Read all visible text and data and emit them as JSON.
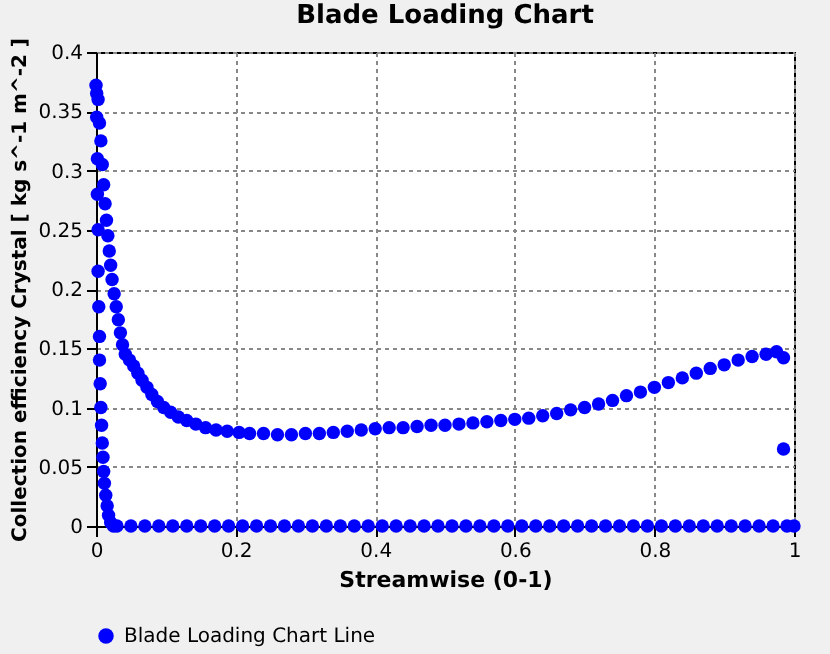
{
  "chart_data": {
    "type": "scatter",
    "title": "Blade Loading Chart",
    "xlabel": "Streamwise (0-1)",
    "ylabel": "Collection efficiency Crystal [ kg s^-1 m^-2 ]",
    "xlim": [
      0,
      1
    ],
    "xticks": [
      0,
      0.2,
      0.4,
      0.6,
      0.8,
      1
    ],
    "ylim": [
      0,
      0.4
    ],
    "yticks": [
      0,
      0.05,
      0.1,
      0.15,
      0.2,
      0.25,
      0.3,
      0.35,
      0.4
    ],
    "grid": true,
    "legend": "bottom",
    "marker": "circle",
    "series": [
      {
        "name": "Blade Loading Chart Line",
        "color": "#0000ff",
        "x": [
          0.0,
          0.003,
          0.005,
          0.007,
          0.009,
          0.011,
          0.013,
          0.015,
          0.017,
          0.019,
          0.021,
          0.023,
          0.026,
          0.029,
          0.032,
          0.035,
          0.038,
          0.042,
          0.048,
          0.054,
          0.06,
          0.066,
          0.073,
          0.08,
          0.088,
          0.097,
          0.107,
          0.118,
          0.13,
          0.143,
          0.157,
          0.172,
          0.188,
          0.205,
          0.22,
          0.24,
          0.26,
          0.28,
          0.3,
          0.32,
          0.34,
          0.36,
          0.38,
          0.4,
          0.42,
          0.44,
          0.46,
          0.48,
          0.5,
          0.52,
          0.54,
          0.56,
          0.58,
          0.6,
          0.62,
          0.64,
          0.66,
          0.68,
          0.7,
          0.72,
          0.74,
          0.76,
          0.78,
          0.8,
          0.82,
          0.84,
          0.86,
          0.88,
          0.9,
          0.92,
          0.94,
          0.96,
          0.975,
          0.985,
          0.985,
          0.001,
          0.001,
          0.002,
          0.002,
          0.003,
          0.003,
          0.004,
          0.005,
          0.005,
          0.006,
          0.007,
          0.008,
          0.009,
          0.01,
          0.011,
          0.012,
          0.014,
          0.016,
          0.018,
          0.021,
          0.025,
          0.03,
          0.05,
          0.07,
          0.09,
          0.11,
          0.13,
          0.15,
          0.17,
          0.19,
          0.21,
          0.23,
          0.25,
          0.27,
          0.29,
          0.31,
          0.33,
          0.35,
          0.37,
          0.39,
          0.41,
          0.43,
          0.45,
          0.47,
          0.49,
          0.51,
          0.53,
          0.55,
          0.57,
          0.59,
          0.61,
          0.63,
          0.65,
          0.67,
          0.69,
          0.71,
          0.73,
          0.75,
          0.77,
          0.79,
          0.81,
          0.83,
          0.85,
          0.87,
          0.89,
          0.91,
          0.93,
          0.95,
          0.97,
          0.99,
          1.0
        ],
        "values": [
          0.372,
          0.36,
          0.34,
          0.325,
          0.305,
          0.288,
          0.272,
          0.258,
          0.245,
          0.232,
          0.22,
          0.208,
          0.196,
          0.185,
          0.174,
          0.163,
          0.153,
          0.145,
          0.14,
          0.135,
          0.129,
          0.123,
          0.117,
          0.111,
          0.105,
          0.1,
          0.096,
          0.092,
          0.089,
          0.086,
          0.083,
          0.081,
          0.08,
          0.079,
          0.078,
          0.078,
          0.077,
          0.077,
          0.078,
          0.078,
          0.079,
          0.08,
          0.081,
          0.082,
          0.083,
          0.083,
          0.084,
          0.085,
          0.085,
          0.086,
          0.087,
          0.088,
          0.089,
          0.09,
          0.091,
          0.093,
          0.095,
          0.098,
          0.1,
          0.103,
          0.106,
          0.11,
          0.113,
          0.117,
          0.121,
          0.125,
          0.129,
          0.133,
          0.136,
          0.14,
          0.143,
          0.145,
          0.147,
          0.142,
          0.065,
          0.365,
          0.345,
          0.31,
          0.28,
          0.25,
          0.215,
          0.185,
          0.16,
          0.14,
          0.12,
          0.1,
          0.085,
          0.07,
          0.058,
          0.046,
          0.036,
          0.026,
          0.017,
          0.009,
          0.003,
          0.0,
          0,
          0,
          0,
          0,
          0,
          0,
          0,
          0,
          0,
          0,
          0,
          0,
          0,
          0,
          0,
          0,
          0,
          0,
          0,
          0,
          0,
          0,
          0,
          0,
          0,
          0,
          0,
          0,
          0,
          0,
          0,
          0,
          0,
          0,
          0,
          0,
          0,
          0,
          0,
          0,
          0,
          0,
          0,
          0,
          0,
          0,
          0,
          0,
          0,
          0
        ]
      }
    ]
  }
}
